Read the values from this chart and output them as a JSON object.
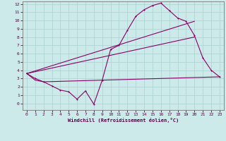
{
  "xlabel": "Windchill (Refroidissement éolien,°C)",
  "bg_color": "#cdeaea",
  "grid_color": "#b0d4d4",
  "line_color": "#880066",
  "xlim": [
    -0.5,
    23.5
  ],
  "ylim": [
    -0.8,
    12.3
  ],
  "xticks": [
    0,
    1,
    2,
    3,
    4,
    5,
    6,
    7,
    8,
    9,
    10,
    11,
    12,
    13,
    14,
    15,
    16,
    17,
    18,
    19,
    20,
    21,
    22,
    23
  ],
  "yticks": [
    0,
    1,
    2,
    3,
    4,
    5,
    6,
    7,
    8,
    9,
    10,
    11,
    12
  ],
  "series1_x": [
    0,
    1,
    2,
    3,
    4,
    5,
    6,
    7,
    8,
    9,
    10,
    11,
    12,
    13,
    14,
    15,
    16,
    17,
    18,
    19,
    20,
    21,
    22,
    23
  ],
  "series1_y": [
    3.6,
    3.0,
    2.6,
    2.1,
    1.6,
    1.4,
    0.5,
    1.5,
    -0.1,
    2.8,
    6.5,
    7.0,
    8.8,
    10.5,
    11.3,
    11.8,
    12.1,
    11.2,
    10.3,
    9.9,
    8.2,
    5.5,
    4.0,
    3.2
  ],
  "series2_x": [
    0,
    1,
    2,
    23
  ],
  "series2_y": [
    3.6,
    2.8,
    2.6,
    3.2
  ],
  "series3_x": [
    0,
    20
  ],
  "series3_y": [
    3.6,
    9.9
  ],
  "series4_x": [
    0,
    20
  ],
  "series4_y": [
    3.6,
    8.0
  ]
}
